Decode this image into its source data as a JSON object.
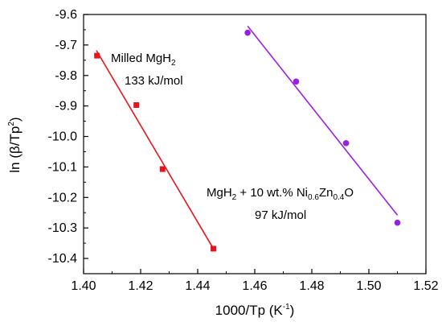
{
  "chart_data": {
    "type": "scatter",
    "xlabel": {
      "prefix": "1000/Tp (K",
      "sup": "-1",
      "suffix": ")"
    },
    "ylabel": {
      "prefix": "ln (β/Tp",
      "sup": "2",
      "suffix": ")"
    },
    "xlim": [
      1.4,
      1.52
    ],
    "ylim": [
      -10.45,
      -9.6
    ],
    "x_ticks": [
      1.4,
      1.42,
      1.44,
      1.46,
      1.48,
      1.5,
      1.52
    ],
    "x_tick_labels": [
      "1.40",
      "1.42",
      "1.44",
      "1.46",
      "1.48",
      "1.50",
      "1.52"
    ],
    "y_ticks": [
      -9.6,
      -9.7,
      -9.8,
      -9.9,
      -10.0,
      -10.1,
      -10.2,
      -10.3,
      -10.4
    ],
    "y_tick_labels": [
      "-9.6",
      "-9.7",
      "-9.8",
      "-9.9",
      "-10.0",
      "-10.1",
      "-10.2",
      "-10.3",
      "-10.4"
    ],
    "grid": false,
    "series": [
      {
        "marker": "square",
        "color": "#e8141c",
        "x": [
          1.4047,
          1.4185,
          1.4277,
          1.4455
        ],
        "y": [
          -9.735,
          -9.897,
          -10.107,
          -10.368
        ],
        "fit": {
          "x": [
            1.4045,
            1.4455
          ],
          "y": [
            -9.718,
            -10.368
          ]
        }
      },
      {
        "marker": "circle",
        "color": "#9b1ee6",
        "x": [
          1.4575,
          1.4745,
          1.492,
          1.51
        ],
        "y": [
          -9.66,
          -9.82,
          -10.022,
          -10.283
        ],
        "fit": {
          "x": [
            1.4575,
            1.51
          ],
          "y": [
            -9.638,
            -10.258
          ]
        }
      }
    ],
    "annotations": [
      {
        "line1": {
          "prefix": "Milled MgH",
          "sub": "2",
          "suffix": ""
        },
        "line2": "133 kJ/mol"
      },
      {
        "line1": {
          "p1": "MgH",
          "s1": "2",
          "p2": " + 10 wt.% Ni",
          "s2": "0.6",
          "p3": "Zn",
          "s3": "0.4",
          "p4": "O"
        },
        "line2": "97 kJ/mol"
      }
    ]
  }
}
